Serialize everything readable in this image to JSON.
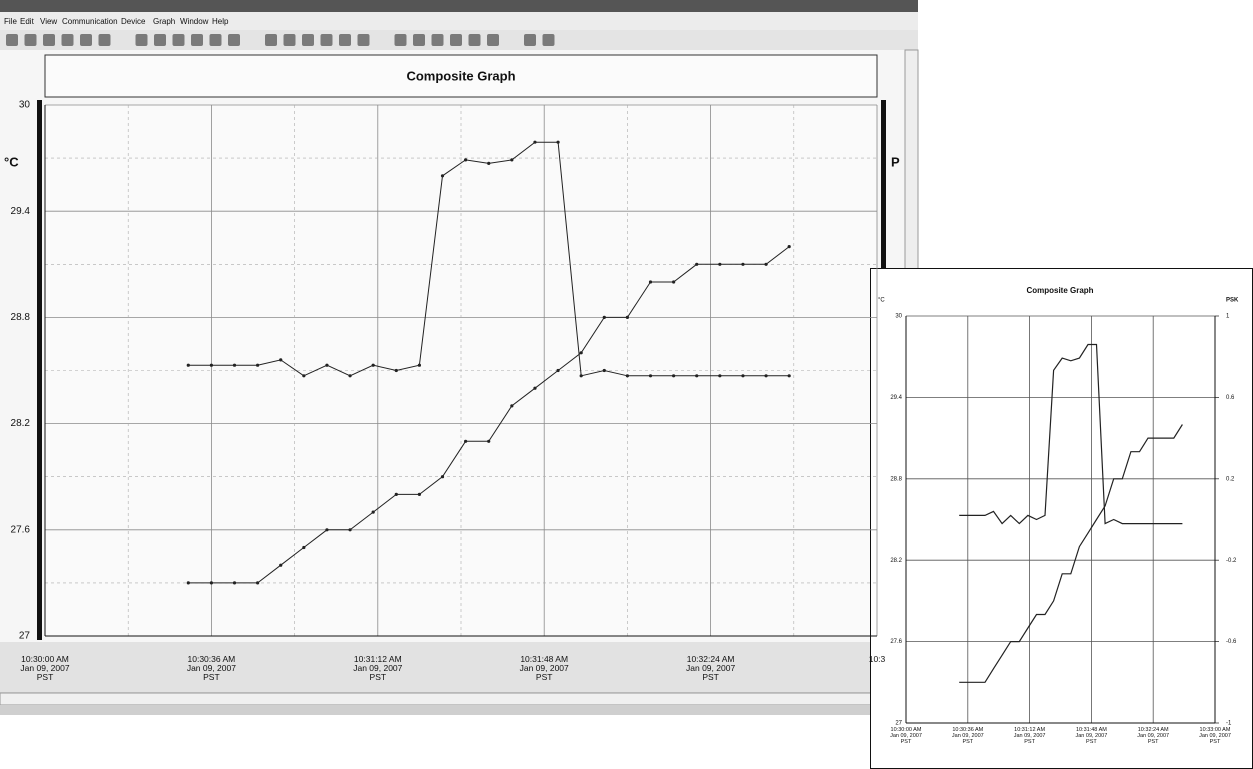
{
  "window": {
    "menu": [
      "File",
      "Edit",
      "View",
      "Communication",
      "Device",
      "Graph",
      "Window",
      "Help"
    ]
  },
  "chart_data": [
    {
      "type": "line",
      "title": "Composite Graph",
      "y_label": "°C",
      "y2_label": "P",
      "x": [
        "10:30:31",
        "10:30:36",
        "10:30:41",
        "10:30:46",
        "10:30:51",
        "10:30:56",
        "10:31:01",
        "10:31:06",
        "10:31:11",
        "10:31:16",
        "10:31:21",
        "10:31:26",
        "10:31:31",
        "10:31:36",
        "10:31:41",
        "10:31:46",
        "10:31:51",
        "10:31:56",
        "10:32:01",
        "10:32:06",
        "10:32:11",
        "10:32:16",
        "10:32:21",
        "10:32:26",
        "10:32:31",
        "10:32:36",
        "10:32:41"
      ],
      "series": [
        {
          "color": "#222222",
          "values": [
            28.53,
            28.53,
            28.53,
            28.53,
            28.56,
            28.47,
            28.53,
            28.47,
            28.53,
            28.5,
            28.53,
            29.6,
            29.69,
            29.67,
            29.69,
            29.79,
            29.79,
            28.47,
            28.5,
            28.47,
            28.47,
            28.47,
            28.47,
            28.47,
            28.47,
            28.47,
            28.47
          ]
        },
        {
          "color": "#222222",
          "values": [
            27.3,
            27.3,
            27.3,
            27.3,
            27.4,
            27.5,
            27.6,
            27.6,
            27.7,
            27.8,
            27.8,
            27.9,
            28.1,
            28.1,
            28.3,
            28.4,
            28.5,
            28.6,
            28.8,
            28.8,
            29.0,
            29.0,
            29.1,
            29.1,
            29.1,
            29.1,
            29.2
          ]
        }
      ],
      "xlim": [
        "10:30:00",
        "10:33:00"
      ],
      "xticks": [
        {
          "value": "10:30:00",
          "label": "10:30:00 AM\nJan 09, 2007\nPST"
        },
        {
          "value": "10:30:36",
          "label": "10:30:36 AM\nJan 09, 2007\nPST"
        },
        {
          "value": "10:31:12",
          "label": "10:31:12 AM\nJan 09, 2007\nPST"
        },
        {
          "value": "10:31:48",
          "label": "10:31:48 AM\nJan 09, 2007\nPST"
        },
        {
          "value": "10:32:24",
          "label": "10:32:24 AM\nJan 09, 2007\nPST"
        },
        {
          "value": "10:33:00",
          "label": "10:3"
        }
      ],
      "ylim": [
        27,
        30
      ],
      "yticks": [
        30,
        29.4,
        28.8,
        28.2,
        27.6,
        27
      ],
      "grid": true,
      "minor_grid": true,
      "markers": true
    },
    {
      "type": "line",
      "title": "Composite Graph",
      "y_label": "°C",
      "y2_label": "PSK",
      "x": [
        "10:30:31",
        "10:30:36",
        "10:30:41",
        "10:30:46",
        "10:30:51",
        "10:30:56",
        "10:31:01",
        "10:31:06",
        "10:31:11",
        "10:31:16",
        "10:31:21",
        "10:31:26",
        "10:31:31",
        "10:31:36",
        "10:31:41",
        "10:31:46",
        "10:31:51",
        "10:31:56",
        "10:32:01",
        "10:32:06",
        "10:32:11",
        "10:32:16",
        "10:32:21",
        "10:32:26",
        "10:32:31",
        "10:32:36",
        "10:32:41"
      ],
      "series": [
        {
          "color": "#222222",
          "values": [
            28.53,
            28.53,
            28.53,
            28.53,
            28.56,
            28.47,
            28.53,
            28.47,
            28.53,
            28.5,
            28.53,
            29.6,
            29.69,
            29.67,
            29.69,
            29.79,
            29.79,
            28.47,
            28.5,
            28.47,
            28.47,
            28.47,
            28.47,
            28.47,
            28.47,
            28.47,
            28.47
          ]
        },
        {
          "color": "#222222",
          "values": [
            27.3,
            27.3,
            27.3,
            27.3,
            27.4,
            27.5,
            27.6,
            27.6,
            27.7,
            27.8,
            27.8,
            27.9,
            28.1,
            28.1,
            28.3,
            28.4,
            28.5,
            28.6,
            28.8,
            28.8,
            29.0,
            29.0,
            29.1,
            29.1,
            29.1,
            29.1,
            29.2
          ]
        }
      ],
      "xlim": [
        "10:30:00",
        "10:33:00"
      ],
      "xticks": [
        {
          "value": "10:30:00",
          "label": "10:30:00 AM\nJan 09, 2007\nPST"
        },
        {
          "value": "10:30:36",
          "label": "10:30:36 AM\nJan 09, 2007\nPST"
        },
        {
          "value": "10:31:12",
          "label": "10:31:12 AM\nJan 09, 2007\nPST"
        },
        {
          "value": "10:31:48",
          "label": "10:31:48 AM\nJan 09, 2007\nPST"
        },
        {
          "value": "10:32:24",
          "label": "10:32:24 AM\nJan 09, 2007\nPST"
        },
        {
          "value": "10:33:00",
          "label": "10:33:00 AM\nJan 09, 2007\nPST"
        }
      ],
      "ylim": [
        27,
        30
      ],
      "yticks": [
        30,
        29.4,
        28.8,
        28.2,
        27.6,
        27
      ],
      "y2lim": [
        -1,
        1
      ],
      "y2ticks": [
        1,
        0.6,
        0.2,
        -0.2,
        -0.6,
        -1
      ],
      "grid": true,
      "minor_grid": false,
      "markers": false
    }
  ]
}
